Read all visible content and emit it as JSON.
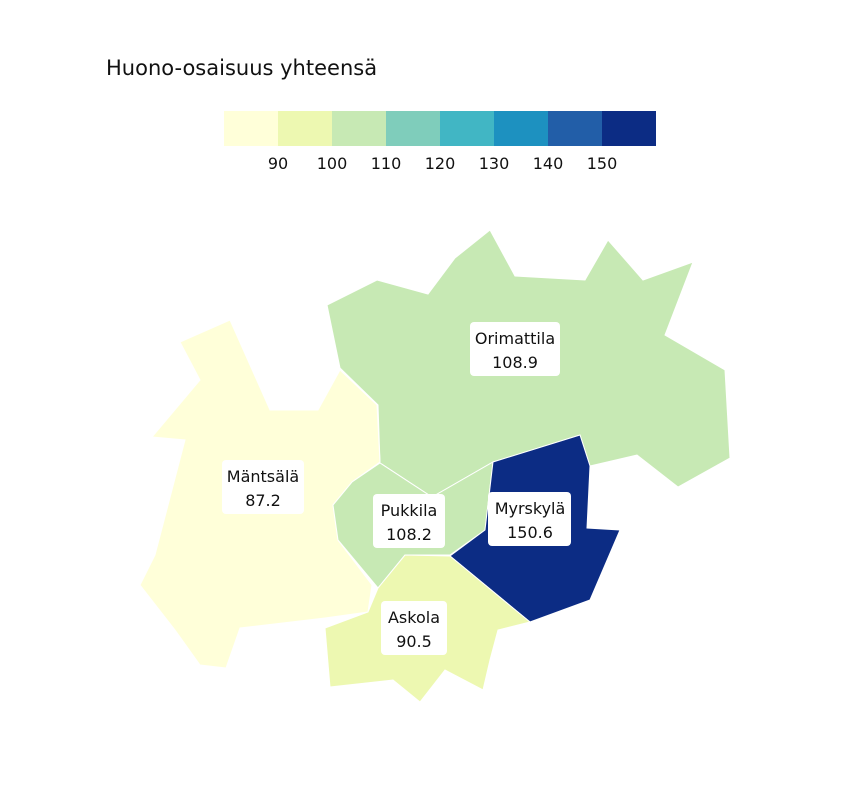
{
  "title": "Huono-osaisuus yhteensä",
  "legend": {
    "colors": [
      "#ffffd9",
      "#edf8b1",
      "#c7e9b4",
      "#7fcdbb",
      "#41b6c4",
      "#1d91c0",
      "#225ea8",
      "#0c2c84"
    ],
    "ticks": [
      "90",
      "100",
      "110",
      "120",
      "130",
      "140",
      "150"
    ]
  },
  "regions": [
    {
      "key": "mantsala",
      "name": "Mäntsälä",
      "value": "87.2",
      "color": "#ffffd9"
    },
    {
      "key": "orimattila",
      "name": "Orimattila",
      "value": "108.9",
      "color": "#c7e9b4"
    },
    {
      "key": "pukkila",
      "name": "Pukkila",
      "value": "108.2",
      "color": "#c7e9b4"
    },
    {
      "key": "myrskyla",
      "name": "Myrskylä",
      "value": "150.6",
      "color": "#0c2c84"
    },
    {
      "key": "askola",
      "name": "Askola",
      "value": "90.5",
      "color": "#edf8b1"
    }
  ]
}
